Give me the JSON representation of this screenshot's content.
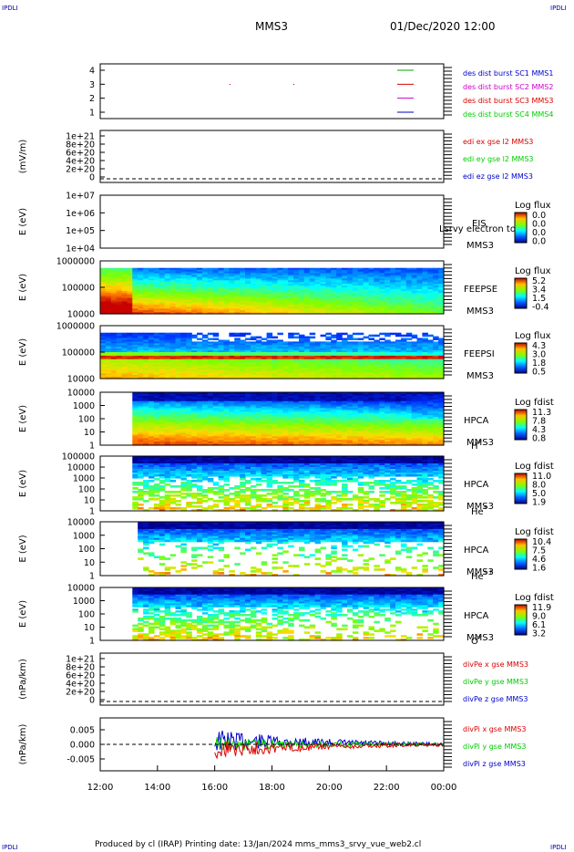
{
  "corner_label": "IPDLI",
  "header": {
    "spacecraft": "MMS3",
    "datetime": "01/Dec/2020 12:00"
  },
  "footer": {
    "text": "Produced by cl (IRAP)   Printing date: 13/Jan/2024   mms_mms3_srvy_vue_web2.cl"
  },
  "colors": {
    "sc1": "#00aa00",
    "sc2": "#cc00cc",
    "sc3": "#dd0000",
    "sc4": "#0000cc",
    "ex": "#dd0000",
    "ey": "#00cc00",
    "ez": "#0000cc"
  },
  "chart_data": {
    "type": "stacked multi-panel time series",
    "x_tick_labels": [
      "12:00",
      "14:00",
      "16:00",
      "18:00",
      "20:00",
      "22:00",
      "00:00"
    ],
    "panels": [
      {
        "id": "burst",
        "type": "line",
        "ylabel": "",
        "y_ticks": [
          "4",
          "3",
          "2",
          "1"
        ],
        "legend": [
          "des dist burst SC1 MMS1",
          "des dist burst SC2 MMS2",
          "des dist burst SC3 MMS3",
          "des dist burst SC4 MMS4"
        ]
      },
      {
        "id": "edi",
        "type": "line",
        "ylabel": "(mV/m)",
        "y_ticks": [
          "1e+21",
          "8e+20",
          "6e+20",
          "4e+20",
          "2e+20",
          "0"
        ],
        "legend": [
          "edi ex gse l2 MMS3",
          "edi ey gse l2 MMS3",
          "edi ez gse l2 MMS3"
        ]
      },
      {
        "id": "eis",
        "type": "heatmap",
        "ylabel": "E (eV)",
        "y_ticks": [
          "1e+07",
          "1e+06",
          "1e+05",
          "1e+04"
        ],
        "right_labels": [
          "EIS",
          "MMS3"
        ],
        "overflow_label": "Lsrvy electron to",
        "colorbar_title": "Log flux",
        "colorbar_ticks": [
          "0.0",
          "0.0",
          "0.0",
          "0.0"
        ]
      },
      {
        "id": "feepse",
        "type": "heatmap",
        "ylabel": "E (eV)",
        "y_ticks": [
          "1000000",
          "100000",
          "10000"
        ],
        "right_labels": [
          "FEEPSE",
          "MMS3"
        ],
        "colorbar_title": "Log flux",
        "colorbar_ticks": [
          "5.2",
          "3.4",
          "1.5",
          "-0.4"
        ]
      },
      {
        "id": "feepsi",
        "type": "heatmap",
        "ylabel": "E (eV)",
        "y_ticks": [
          "1000000",
          "100000",
          "10000"
        ],
        "right_labels": [
          "FEEPSI",
          "MMS3"
        ],
        "colorbar_title": "Log flux",
        "colorbar_ticks": [
          "4.3",
          "3.0",
          "1.8",
          "0.5"
        ]
      },
      {
        "id": "hpca_h",
        "type": "heatmap",
        "ylabel": "E (eV)",
        "y_ticks": [
          "10000",
          "1000",
          "100",
          "10",
          "1"
        ],
        "right_labels": [
          "HPCA",
          "MMS3",
          "H",
          "+"
        ],
        "colorbar_title": "Log fdist",
        "colorbar_ticks": [
          "11.3",
          "7.8",
          "4.3",
          "0.8"
        ]
      },
      {
        "id": "hpca_he",
        "type": "heatmap",
        "ylabel": "E (eV)",
        "y_ticks": [
          "100000",
          "10000",
          "1000",
          "100",
          "10",
          "1"
        ],
        "right_labels": [
          "HPCA",
          "MMS3",
          "He",
          "+"
        ],
        "colorbar_title": "Log fdist",
        "colorbar_ticks": [
          "11.0",
          "8.0",
          "5.0",
          "1.9"
        ]
      },
      {
        "id": "hpca_he2",
        "type": "heatmap",
        "ylabel": "E (eV)",
        "y_ticks": [
          "10000",
          "1000",
          "100",
          "10",
          "1"
        ],
        "right_labels": [
          "HPCA",
          "MMS3",
          "He",
          "++"
        ],
        "colorbar_title": "Log fdist",
        "colorbar_ticks": [
          "10.4",
          "7.5",
          "4.6",
          "1.6"
        ]
      },
      {
        "id": "hpca_o",
        "type": "heatmap",
        "ylabel": "E (eV)",
        "y_ticks": [
          "10000",
          "1000",
          "100",
          "10",
          "1"
        ],
        "right_labels": [
          "HPCA",
          "MMS3",
          "O",
          "+"
        ],
        "colorbar_title": "Log fdist",
        "colorbar_ticks": [
          "11.9",
          "9.0",
          "6.1",
          "3.2"
        ]
      },
      {
        "id": "divpe",
        "type": "line",
        "ylabel": "(nPa/km)",
        "y_ticks": [
          "1e+21",
          "8e+20",
          "6e+20",
          "4e+20",
          "2e+20",
          "0"
        ],
        "legend": [
          "divPe x gse MMS3",
          "divPe y gse MMS3",
          "divPe z gse MMS3"
        ]
      },
      {
        "id": "divpi",
        "type": "line",
        "ylabel": "(nPa/km)",
        "y_ticks": [
          "0.005",
          "0.000",
          "-0.005"
        ],
        "legend": [
          "divPi x gse MMS3",
          "divPi y gse MMS3",
          "divPi z gse MMS3"
        ]
      }
    ]
  }
}
